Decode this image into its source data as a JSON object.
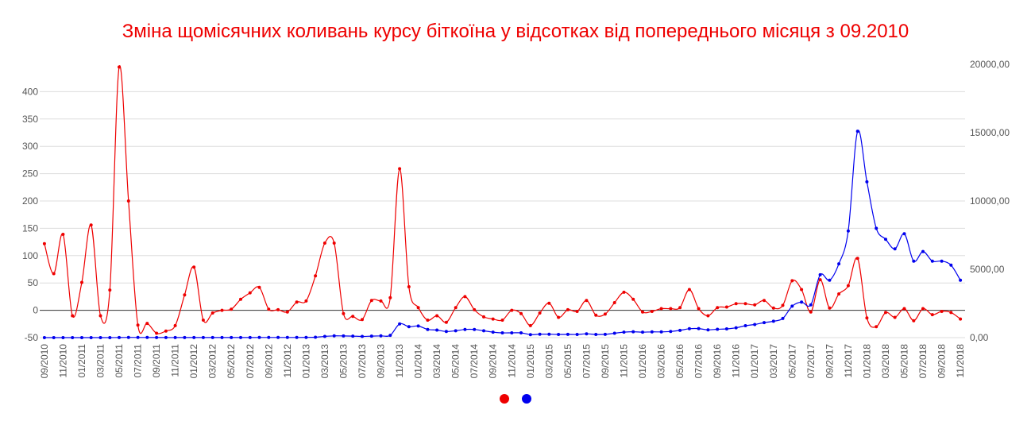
{
  "chart_data": {
    "type": "line",
    "title": "Зміна щомісячних коливань курсу біткоїна у відсотках від попереднього місяця з 09.2010",
    "title_color": "#ee0000",
    "x": [
      "09/2010",
      "10/2010",
      "11/2010",
      "12/2010",
      "01/2011",
      "02/2011",
      "03/2011",
      "04/2011",
      "05/2011",
      "06/2011",
      "07/2011",
      "08/2011",
      "09/2011",
      "10/2011",
      "11/2011",
      "12/2011",
      "01/2012",
      "02/2012",
      "03/2012",
      "04/2012",
      "05/2012",
      "06/2012",
      "07/2012",
      "08/2012",
      "09/2012",
      "10/2012",
      "11/2012",
      "12/2012",
      "01/2013",
      "02/2013",
      "03/2013",
      "04/2013",
      "05/2013",
      "06/2013",
      "07/2013",
      "08/2013",
      "09/2013",
      "10/2013",
      "11/2013",
      "12/2013",
      "01/2014",
      "02/2014",
      "03/2014",
      "04/2014",
      "05/2014",
      "06/2014",
      "07/2014",
      "08/2014",
      "09/2014",
      "10/2014",
      "11/2014",
      "12/2014",
      "01/2015",
      "02/2015",
      "03/2015",
      "04/2015",
      "05/2015",
      "06/2015",
      "07/2015",
      "08/2015",
      "09/2015",
      "10/2015",
      "11/2015",
      "12/2015",
      "01/2016",
      "02/2016",
      "03/2016",
      "04/2016",
      "05/2016",
      "06/2016",
      "07/2016",
      "08/2016",
      "09/2016",
      "10/2016",
      "11/2016",
      "12/2016",
      "01/2017",
      "02/2017",
      "03/2017",
      "04/2017",
      "05/2017",
      "06/2017",
      "07/2017",
      "08/2017",
      "09/2017",
      "10/2017",
      "11/2017",
      "12/2017",
      "01/2018",
      "02/2018",
      "03/2018",
      "04/2018",
      "05/2018",
      "06/2018",
      "07/2018",
      "08/2018",
      "09/2018",
      "10/2018",
      "11/2018"
    ],
    "x_tick_labels": [
      "09/2010",
      "11/2010",
      "01/2011",
      "03/2011",
      "05/2011",
      "07/2011",
      "09/2011",
      "11/2011",
      "01/2012",
      "03/2012",
      "05/2012",
      "07/2012",
      "09/2012",
      "11/2012",
      "01/2013",
      "03/2013",
      "05/2013",
      "07/2013",
      "09/2013",
      "11/2013",
      "01/2014",
      "03/2014",
      "05/2014",
      "07/2014",
      "09/2014",
      "11/2014",
      "01/2015",
      "03/2015",
      "05/2015",
      "07/2015",
      "09/2015",
      "11/2015",
      "01/2016",
      "03/2016",
      "05/2016",
      "07/2016",
      "09/2016",
      "11/2016",
      "01/2017",
      "03/2017",
      "05/2017",
      "07/2017",
      "09/2017",
      "11/2017",
      "01/2018",
      "03/2018",
      "05/2018",
      "07/2018",
      "09/2018",
      "11/2018"
    ],
    "y_left_ticks": [
      "-50",
      "0",
      "50",
      "100",
      "150",
      "200",
      "250",
      "300",
      "350",
      "400"
    ],
    "y_left_range": [
      -50,
      450
    ],
    "y_right_ticks": [
      "0,00",
      "5000,00",
      "10000,00",
      "15000,00",
      "20000,00"
    ],
    "y_right_range": [
      0,
      20000
    ],
    "grid": true,
    "zero_line": true,
    "legend": {
      "position": "bottom",
      "entries": [
        {
          "color": "#ee0000"
        },
        {
          "color": "#0000ee"
        }
      ]
    },
    "series": [
      {
        "axis": "left",
        "color": "#ee0000",
        "values": [
          122,
          67,
          139,
          -10,
          51,
          156,
          -10,
          37,
          445,
          200,
          -27,
          -24,
          -42,
          -38,
          -28,
          28,
          79,
          -18,
          -5,
          0,
          2,
          20,
          32,
          42,
          2,
          1,
          -3,
          15,
          17,
          63,
          123,
          123,
          -6,
          -11,
          -17,
          18,
          17,
          23,
          259,
          43,
          5,
          -18,
          -10,
          -22,
          5,
          25,
          1,
          -12,
          -16,
          -18,
          0,
          -6,
          -28,
          -5,
          13,
          -13,
          1,
          -2,
          18,
          -9,
          -7,
          14,
          33,
          20,
          -3,
          -2,
          3,
          3,
          5,
          38,
          3,
          -10,
          5,
          6,
          12,
          12,
          10,
          18,
          4,
          9,
          54,
          38,
          -3,
          56,
          4,
          30,
          45,
          95,
          -14,
          -30,
          -4,
          -13,
          3,
          -19,
          3,
          -8,
          -2,
          -4,
          -16
        ]
      },
      {
        "axis": "right",
        "color": "#0000ee",
        "values": [
          0.06,
          0.1,
          0.2,
          0.25,
          0.3,
          0.9,
          0.8,
          1.0,
          6,
          17,
          14,
          12,
          5,
          3.3,
          3,
          4.5,
          6,
          5,
          5,
          5,
          5,
          6.6,
          8,
          10,
          12,
          12,
          11,
          13,
          17,
          30,
          90,
          130,
          120,
          110,
          90,
          110,
          130,
          170,
          1000,
          800,
          850,
          600,
          550,
          450,
          500,
          600,
          600,
          500,
          400,
          350,
          350,
          350,
          220,
          250,
          250,
          230,
          240,
          230,
          280,
          230,
          240,
          320,
          400,
          430,
          400,
          420,
          420,
          450,
          530,
          650,
          660,
          570,
          610,
          640,
          720,
          870,
          960,
          1100,
          1200,
          1400,
          2300,
          2600,
          2400,
          4600,
          4200,
          5400,
          7800,
          15100,
          11400,
          8000,
          7200,
          6500,
          7600,
          5600,
          6300,
          5600,
          5600,
          5300,
          4200
        ]
      }
    ]
  }
}
